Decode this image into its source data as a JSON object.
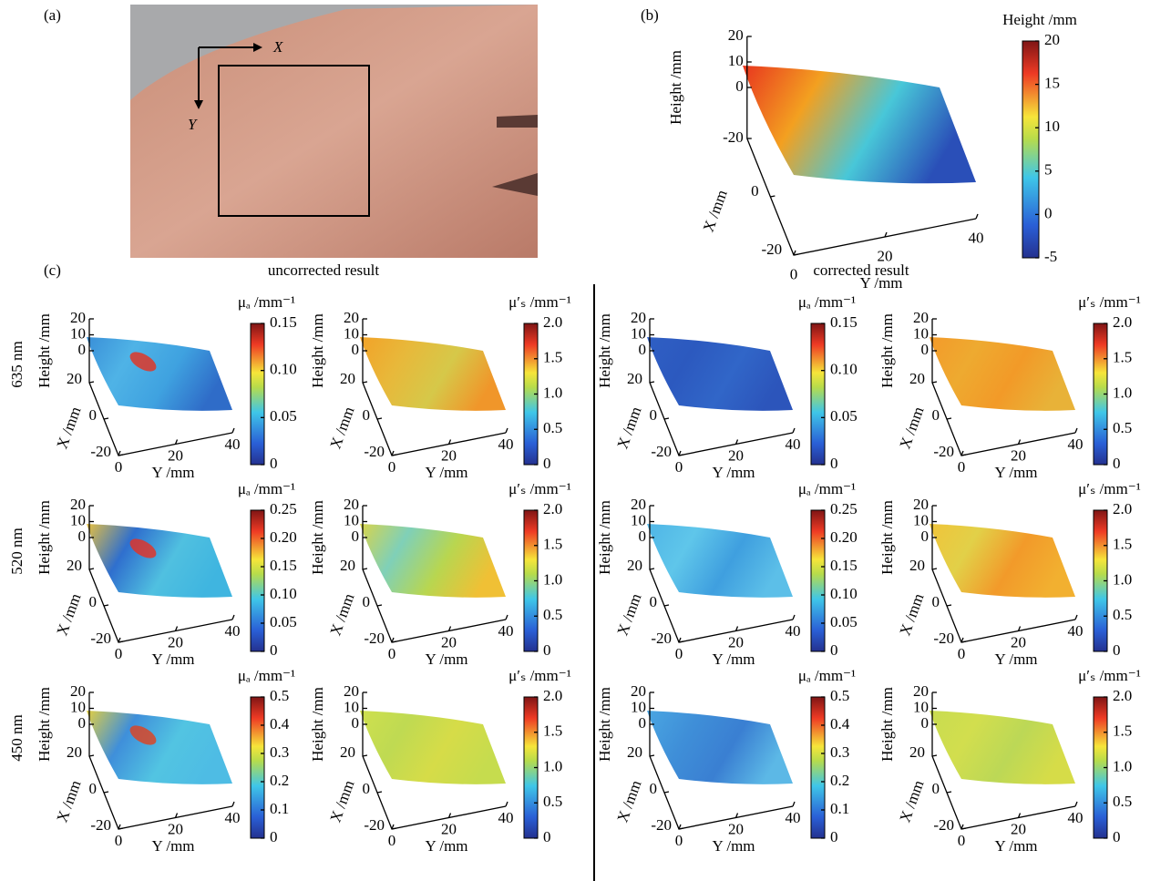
{
  "a": {
    "label": "(a)",
    "x_axis": "X",
    "y_axis": "Y"
  },
  "b": {
    "label": "(b)",
    "colorbar": {
      "title": "Height /mm",
      "clim": [
        -5,
        20
      ],
      "ticks": [
        -5,
        0,
        5,
        10,
        15,
        20
      ]
    },
    "axes": {
      "z_label": "Height /mm",
      "x_label": "X /mm",
      "y_label": "Y /mm",
      "zlim": [
        -20,
        20
      ],
      "xlim": [
        -20,
        20
      ],
      "ylim": [
        0,
        40
      ],
      "z_ticks": [
        20,
        10,
        0,
        -20
      ],
      "x_ticks": [
        -20,
        0
      ],
      "y_ticks": [
        0,
        20,
        40
      ]
    }
  },
  "c": {
    "label": "(c)",
    "groups": [
      "uncorrected result",
      "corrected result"
    ],
    "wavelengths": [
      "635 nm",
      "520 nm",
      "450 nm"
    ],
    "axes": {
      "z_label": "Height /mm",
      "x_label": "X /mm",
      "y_label": "Y /mm",
      "zlim": [
        -20,
        20
      ],
      "xlim": [
        -20,
        20
      ],
      "ylim": [
        0,
        40
      ],
      "z_ticks": [
        20,
        10,
        0
      ],
      "x_ticks": [
        -20,
        0,
        20
      ],
      "y_ticks": [
        0,
        20,
        40
      ]
    },
    "mua_title": "μₐ /mm⁻¹",
    "mua_colorbars": [
      {
        "clim": [
          0,
          0.15
        ],
        "ticks": [
          0,
          0.05,
          {
            "value": 0.1,
            "label": "0.10"
          },
          0.15
        ]
      },
      {
        "clim": [
          0,
          0.25
        ],
        "ticks": [
          0,
          0.05,
          {
            "value": 0.1,
            "label": "0.10"
          },
          0.15,
          {
            "value": 0.2,
            "label": "0.20"
          },
          0.25
        ]
      },
      {
        "clim": [
          0,
          0.5
        ],
        "ticks": [
          0,
          0.1,
          0.2,
          0.3,
          0.4,
          0.5
        ]
      }
    ],
    "mus_colorbar": {
      "title": "μ′ₛ /mm⁻¹",
      "clim": [
        0,
        2
      ],
      "ticks": [
        0,
        0.5,
        {
          "value": 1,
          "label": "1.0"
        },
        1.5,
        {
          "value": 2,
          "label": "2.0"
        }
      ]
    }
  }
}
